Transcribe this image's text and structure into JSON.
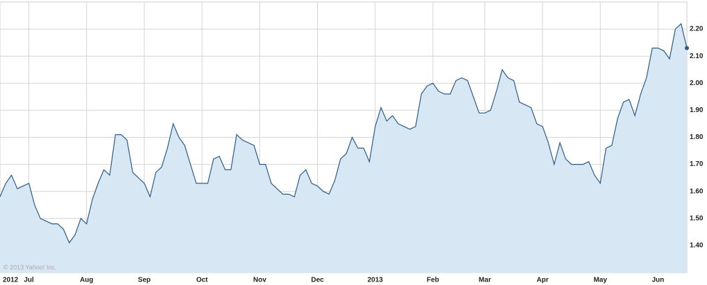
{
  "chart_data": {
    "type": "line",
    "year_label": "2012",
    "annotation": "© 2013 Yahoo! Inc.",
    "categories": [
      null,
      null,
      null,
      null,
      null,
      "Jul",
      null,
      null,
      null,
      null,
      null,
      null,
      null,
      null,
      null,
      "Aug",
      null,
      null,
      null,
      null,
      null,
      null,
      null,
      null,
      null,
      "Sep",
      null,
      null,
      null,
      null,
      null,
      null,
      null,
      null,
      null,
      "Oct",
      null,
      null,
      null,
      null,
      null,
      null,
      null,
      null,
      null,
      "Nov",
      null,
      null,
      null,
      null,
      null,
      null,
      null,
      null,
      null,
      "Dec",
      null,
      null,
      null,
      null,
      null,
      null,
      null,
      null,
      null,
      "2013",
      null,
      null,
      null,
      null,
      null,
      null,
      null,
      null,
      null,
      "Feb",
      null,
      null,
      null,
      null,
      null,
      null,
      null,
      null,
      "Mar",
      null,
      null,
      null,
      null,
      null,
      null,
      null,
      null,
      null,
      "Apr",
      null,
      null,
      null,
      null,
      null,
      null,
      null,
      null,
      null,
      "May",
      null,
      null,
      null,
      null,
      null,
      null,
      null,
      null,
      null,
      "Jun",
      null,
      null,
      null,
      null,
      null
    ],
    "values": [
      1.58,
      1.63,
      1.66,
      1.61,
      1.62,
      1.63,
      1.55,
      1.5,
      1.49,
      1.48,
      1.48,
      1.46,
      1.41,
      1.44,
      1.5,
      1.48,
      1.57,
      1.63,
      1.68,
      1.66,
      1.81,
      1.81,
      1.79,
      1.67,
      1.65,
      1.63,
      1.58,
      1.67,
      1.69,
      1.76,
      1.85,
      1.8,
      1.77,
      1.7,
      1.63,
      1.63,
      1.63,
      1.72,
      1.73,
      1.68,
      1.68,
      1.81,
      1.79,
      1.78,
      1.77,
      1.7,
      1.7,
      1.63,
      1.61,
      1.59,
      1.59,
      1.58,
      1.66,
      1.68,
      1.63,
      1.62,
      1.6,
      1.59,
      1.64,
      1.72,
      1.74,
      1.8,
      1.76,
      1.76,
      1.71,
      1.84,
      1.91,
      1.86,
      1.88,
      1.85,
      1.84,
      1.83,
      1.84,
      1.96,
      1.99,
      2.0,
      1.97,
      1.96,
      1.96,
      2.01,
      2.02,
      2.01,
      1.95,
      1.89,
      1.89,
      1.9,
      1.97,
      2.05,
      2.02,
      2.01,
      1.93,
      1.92,
      1.91,
      1.85,
      1.84,
      1.78,
      1.7,
      1.78,
      1.72,
      1.7,
      1.7,
      1.7,
      1.71,
      1.66,
      1.63,
      1.76,
      1.77,
      1.87,
      1.93,
      1.94,
      1.88,
      1.96,
      2.02,
      2.13,
      2.13,
      2.12,
      2.09,
      2.2,
      2.22,
      2.13
    ],
    "color": "#2b5b8a",
    "fill": "#d7e7f3",
    "ylim": [
      1.3,
      2.3
    ],
    "yticks": [
      {
        "value": 1.4,
        "label": "1.40"
      },
      {
        "value": 1.5,
        "label": "1.50"
      },
      {
        "value": 1.6,
        "label": "1.60"
      },
      {
        "value": 1.7,
        "label": "1.70"
      },
      {
        "value": 1.8,
        "label": "1.80"
      },
      {
        "value": 1.9,
        "label": "1.90"
      },
      {
        "value": 2.0,
        "label": "2.00"
      },
      {
        "value": 2.1,
        "label": "2.10"
      },
      {
        "value": 2.2,
        "label": "2.20"
      }
    ],
    "grid": true
  }
}
